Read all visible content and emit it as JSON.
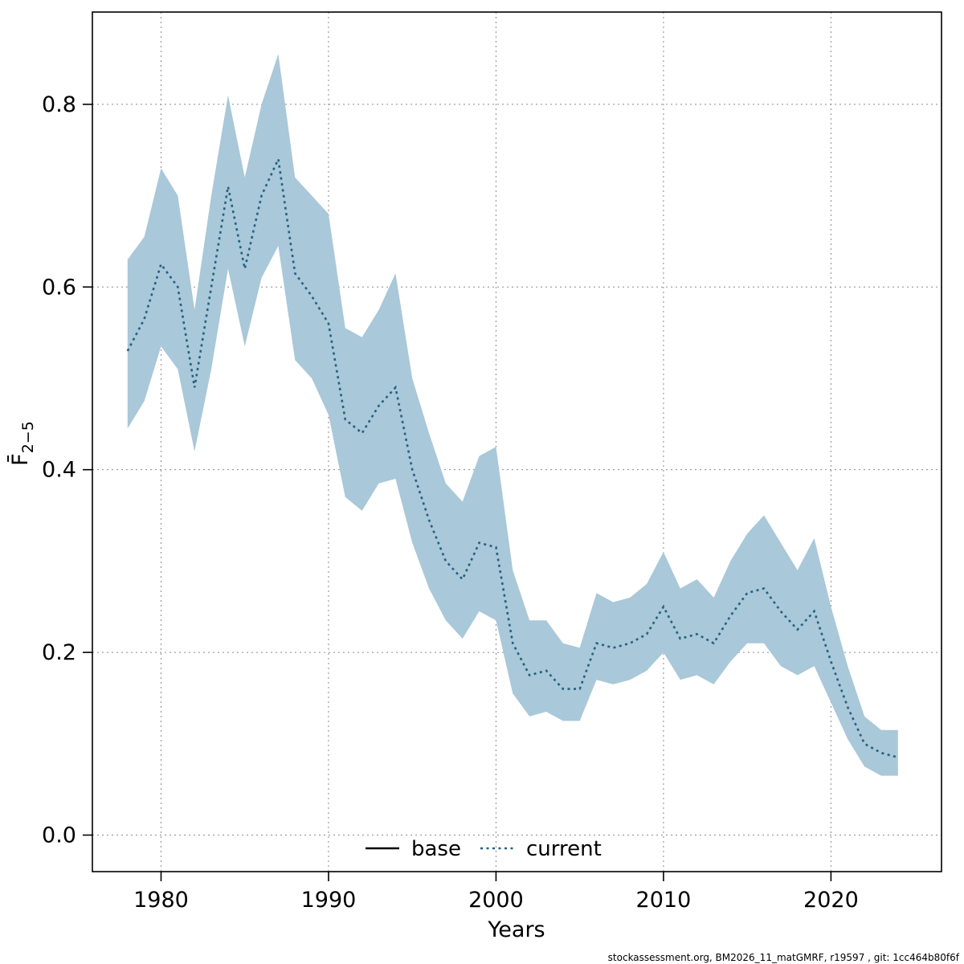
{
  "footer": {
    "caption": "stockassessment.org, BM2026_11_matGMRF, r19597 , git: 1cc464b80f6f"
  },
  "chart_data": {
    "type": "line",
    "title": "",
    "xlabel": "Years",
    "ylabel_main": "F̄",
    "ylabel_sub": "2−5",
    "grid": true,
    "legend_position": "bottom-center-inside",
    "xlim": [
      1975.9,
      2026.6
    ],
    "ylim": [
      -0.04,
      0.901
    ],
    "x_ticks": [
      1980,
      1990,
      2000,
      2010,
      2020
    ],
    "y_ticks": [
      "0.0",
      "0.2",
      "0.4",
      "0.6",
      "0.8"
    ],
    "x": [
      1978,
      1979,
      1980,
      1981,
      1982,
      1983,
      1984,
      1985,
      1986,
      1987,
      1988,
      1989,
      1990,
      1991,
      1992,
      1993,
      1994,
      1995,
      1996,
      1997,
      1998,
      1999,
      2000,
      2001,
      2002,
      2003,
      2004,
      2005,
      2006,
      2007,
      2008,
      2009,
      2010,
      2011,
      2012,
      2013,
      2014,
      2015,
      2016,
      2017,
      2018,
      2019,
      2020,
      2021,
      2022,
      2023,
      2024
    ],
    "series": [
      {
        "name": "current",
        "style": "dotted",
        "color": "#24617f",
        "values": [
          0.53,
          0.565,
          0.625,
          0.6,
          0.49,
          0.6,
          0.71,
          0.62,
          0.7,
          0.74,
          0.615,
          0.59,
          0.56,
          0.455,
          0.44,
          0.47,
          0.49,
          0.4,
          0.345,
          0.3,
          0.28,
          0.32,
          0.315,
          0.21,
          0.175,
          0.18,
          0.16,
          0.16,
          0.21,
          0.205,
          0.21,
          0.22,
          0.25,
          0.215,
          0.22,
          0.21,
          0.24,
          0.265,
          0.27,
          0.245,
          0.225,
          0.245,
          0.19,
          0.14,
          0.1,
          0.09,
          0.085
        ]
      }
    ],
    "band": {
      "name": "confidence-interval",
      "color": "#a9c8d9",
      "upper": [
        0.63,
        0.655,
        0.73,
        0.7,
        0.575,
        0.7,
        0.81,
        0.72,
        0.8,
        0.855,
        0.72,
        0.7,
        0.68,
        0.555,
        0.545,
        0.575,
        0.615,
        0.5,
        0.44,
        0.385,
        0.365,
        0.415,
        0.425,
        0.29,
        0.235,
        0.235,
        0.21,
        0.205,
        0.265,
        0.255,
        0.26,
        0.275,
        0.31,
        0.27,
        0.28,
        0.26,
        0.3,
        0.33,
        0.35,
        0.32,
        0.29,
        0.325,
        0.25,
        0.185,
        0.13,
        0.115,
        0.115
      ],
      "lower": [
        0.445,
        0.475,
        0.535,
        0.51,
        0.42,
        0.51,
        0.62,
        0.535,
        0.61,
        0.645,
        0.52,
        0.5,
        0.46,
        0.37,
        0.355,
        0.385,
        0.39,
        0.32,
        0.27,
        0.235,
        0.215,
        0.245,
        0.235,
        0.155,
        0.13,
        0.135,
        0.125,
        0.125,
        0.17,
        0.165,
        0.17,
        0.18,
        0.2,
        0.17,
        0.175,
        0.165,
        0.19,
        0.21,
        0.21,
        0.185,
        0.175,
        0.185,
        0.145,
        0.105,
        0.075,
        0.065,
        0.065
      ]
    },
    "legend": [
      {
        "label": "base",
        "style": "solid",
        "color": "#000000"
      },
      {
        "label": "current",
        "style": "dotted",
        "color": "#24617f"
      }
    ]
  }
}
